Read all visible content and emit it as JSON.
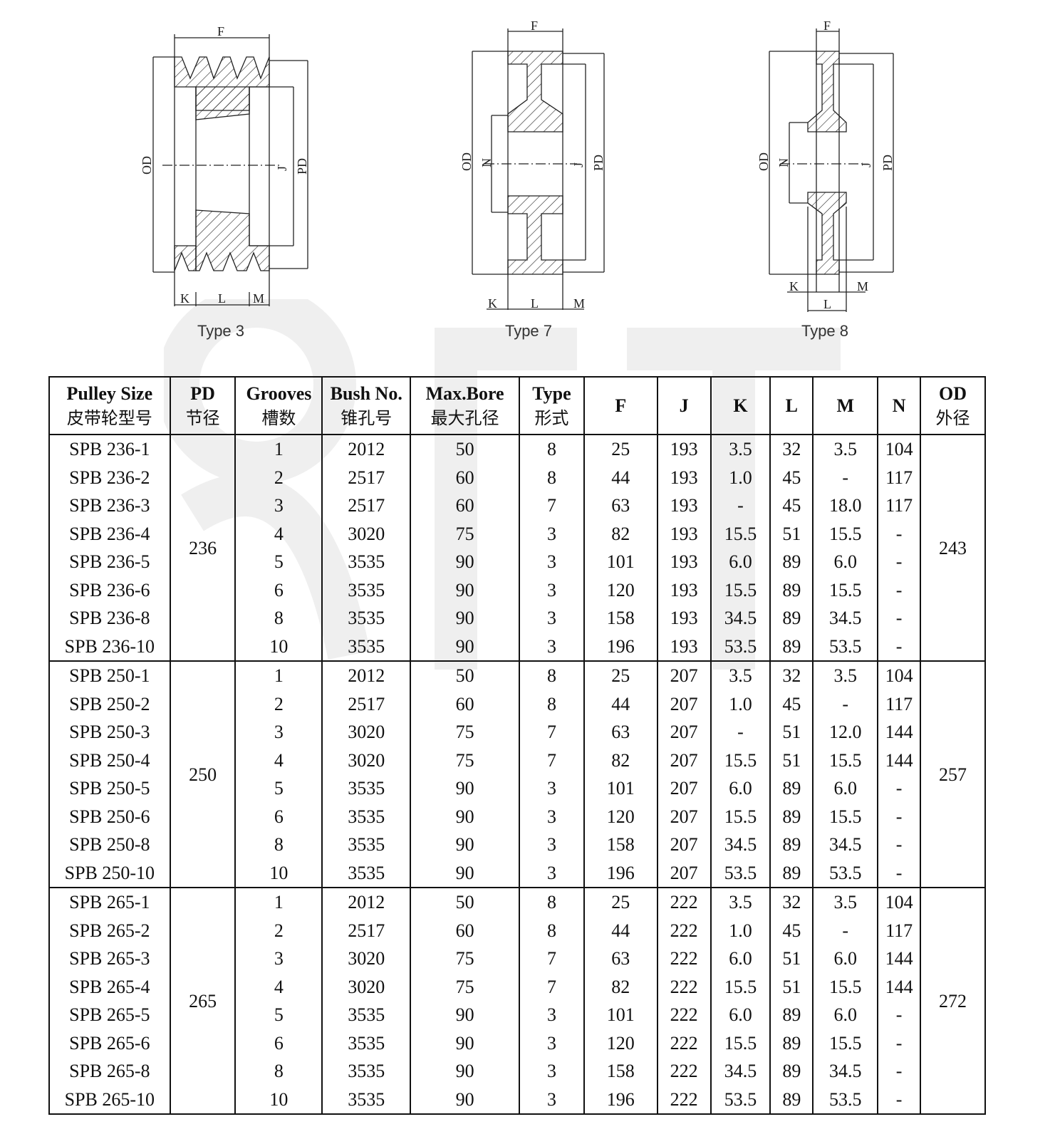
{
  "figures": [
    {
      "caption": "Type 3",
      "dims": [
        "F",
        "OD",
        "J",
        "PD",
        "K",
        "L",
        "M"
      ]
    },
    {
      "caption": "Type 7",
      "dims": [
        "F",
        "OD",
        "N",
        "J",
        "PD",
        "K",
        "L",
        "M"
      ]
    },
    {
      "caption": "Type 8",
      "dims": [
        "F",
        "OD",
        "N",
        "J",
        "PD",
        "K",
        "L",
        "M"
      ]
    }
  ],
  "table": {
    "headers": [
      {
        "en": "Pulley Size",
        "cn": "皮带轮型号"
      },
      {
        "en": "PD",
        "cn": "节径"
      },
      {
        "en": "Grooves",
        "cn": "槽数"
      },
      {
        "en": "Bush No.",
        "cn": "锥孔号"
      },
      {
        "en": "Max.Bore",
        "cn": "最大孔径"
      },
      {
        "en": "Type",
        "cn": "形式"
      },
      {
        "en": "F",
        "cn": ""
      },
      {
        "en": "J",
        "cn": ""
      },
      {
        "en": "K",
        "cn": ""
      },
      {
        "en": "L",
        "cn": ""
      },
      {
        "en": "M",
        "cn": ""
      },
      {
        "en": "N",
        "cn": ""
      },
      {
        "en": "OD",
        "cn": "外径"
      }
    ],
    "groups": [
      {
        "pd": "236",
        "od": "243",
        "rows": [
          [
            "SPB 236-1",
            "1",
            "2012",
            "50",
            "8",
            "25",
            "193",
            "3.5",
            "32",
            "3.5",
            "104"
          ],
          [
            "SPB 236-2",
            "2",
            "2517",
            "60",
            "8",
            "44",
            "193",
            "1.0",
            "45",
            "-",
            "117"
          ],
          [
            "SPB 236-3",
            "3",
            "2517",
            "60",
            "7",
            "63",
            "193",
            "-",
            "45",
            "18.0",
            "117"
          ],
          [
            "SPB 236-4",
            "4",
            "3020",
            "75",
            "3",
            "82",
            "193",
            "15.5",
            "51",
            "15.5",
            "-"
          ],
          [
            "SPB 236-5",
            "5",
            "3535",
            "90",
            "3",
            "101",
            "193",
            "6.0",
            "89",
            "6.0",
            "-"
          ],
          [
            "SPB 236-6",
            "6",
            "3535",
            "90",
            "3",
            "120",
            "193",
            "15.5",
            "89",
            "15.5",
            "-"
          ],
          [
            "SPB 236-8",
            "8",
            "3535",
            "90",
            "3",
            "158",
            "193",
            "34.5",
            "89",
            "34.5",
            "-"
          ],
          [
            "SPB 236-10",
            "10",
            "3535",
            "90",
            "3",
            "196",
            "193",
            "53.5",
            "89",
            "53.5",
            "-"
          ]
        ]
      },
      {
        "pd": "250",
        "od": "257",
        "rows": [
          [
            "SPB 250-1",
            "1",
            "2012",
            "50",
            "8",
            "25",
            "207",
            "3.5",
            "32",
            "3.5",
            "104"
          ],
          [
            "SPB 250-2",
            "2",
            "2517",
            "60",
            "8",
            "44",
            "207",
            "1.0",
            "45",
            "-",
            "117"
          ],
          [
            "SPB 250-3",
            "3",
            "3020",
            "75",
            "7",
            "63",
            "207",
            "-",
            "51",
            "12.0",
            "144"
          ],
          [
            "SPB 250-4",
            "4",
            "3020",
            "75",
            "7",
            "82",
            "207",
            "15.5",
            "51",
            "15.5",
            "144"
          ],
          [
            "SPB 250-5",
            "5",
            "3535",
            "90",
            "3",
            "101",
            "207",
            "6.0",
            "89",
            "6.0",
            "-"
          ],
          [
            "SPB 250-6",
            "6",
            "3535",
            "90",
            "3",
            "120",
            "207",
            "15.5",
            "89",
            "15.5",
            "-"
          ],
          [
            "SPB 250-8",
            "8",
            "3535",
            "90",
            "3",
            "158",
            "207",
            "34.5",
            "89",
            "34.5",
            "-"
          ],
          [
            "SPB 250-10",
            "10",
            "3535",
            "90",
            "3",
            "196",
            "207",
            "53.5",
            "89",
            "53.5",
            "-"
          ]
        ]
      },
      {
        "pd": "265",
        "od": "272",
        "rows": [
          [
            "SPB 265-1",
            "1",
            "2012",
            "50",
            "8",
            "25",
            "222",
            "3.5",
            "32",
            "3.5",
            "104"
          ],
          [
            "SPB 265-2",
            "2",
            "2517",
            "60",
            "8",
            "44",
            "222",
            "1.0",
            "45",
            "-",
            "117"
          ],
          [
            "SPB 265-3",
            "3",
            "3020",
            "75",
            "7",
            "63",
            "222",
            "6.0",
            "51",
            "6.0",
            "144"
          ],
          [
            "SPB 265-4",
            "4",
            "3020",
            "75",
            "7",
            "82",
            "222",
            "15.5",
            "51",
            "15.5",
            "144"
          ],
          [
            "SPB 265-5",
            "5",
            "3535",
            "90",
            "3",
            "101",
            "222",
            "6.0",
            "89",
            "6.0",
            "-"
          ],
          [
            "SPB 265-6",
            "6",
            "3535",
            "90",
            "3",
            "120",
            "222",
            "15.5",
            "89",
            "15.5",
            "-"
          ],
          [
            "SPB 265-8",
            "8",
            "3535",
            "90",
            "3",
            "158",
            "222",
            "34.5",
            "89",
            "34.5",
            "-"
          ],
          [
            "SPB 265-10",
            "10",
            "3535",
            "90",
            "3",
            "196",
            "222",
            "53.5",
            "89",
            "53.5",
            "-"
          ]
        ]
      }
    ]
  }
}
